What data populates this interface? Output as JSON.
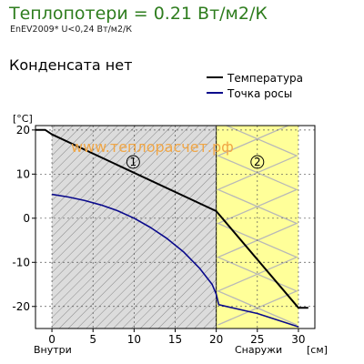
{
  "header": {
    "title": "Теплопотери = 0.21 Вт/м2/К",
    "subtitle": "EnEV2009* U<0,24 Вт/м2/К"
  },
  "status_text": "Конденсата нет",
  "watermark": "www.теплорасчет.рф",
  "colors": {
    "title_green": "#2e7d1e",
    "temperature_line": "#000000",
    "dew_point_line": "#0a0a8c",
    "masonry_fill": "#dcdcdc",
    "insulation_fill": "#ffff99",
    "insulation_zigzag": "#b8b8b8",
    "watermark_orange": "#f0a646"
  },
  "chart_data": {
    "type": "line",
    "ylabel": "[°C]",
    "xlabel_left": "Внутри",
    "xlabel_right": "Снаружи",
    "x_unit": "[см]",
    "xlim": [
      -2,
      32
    ],
    "ylim": [
      -25,
      21
    ],
    "xticks": [
      0,
      5,
      10,
      15,
      20,
      25,
      30
    ],
    "yticks": [
      20,
      10,
      0,
      -10,
      -20
    ],
    "grid": "dashed",
    "legend_position": "top-right",
    "layers": [
      {
        "label": "1",
        "x_start": 0,
        "x_end": 20,
        "material": "masonry"
      },
      {
        "label": "2",
        "x_start": 20,
        "x_end": 30,
        "material": "insulation"
      }
    ],
    "series": [
      {
        "name": "Температура",
        "color": "#000000",
        "x": [
          -2,
          -0.8,
          0,
          20,
          30,
          31.2
        ],
        "y": [
          20,
          20,
          19,
          1.6,
          -20.3,
          -20.3
        ]
      },
      {
        "name": "Точка росы",
        "color": "#0a0a8c",
        "x": [
          0,
          2,
          4,
          6,
          8,
          10,
          12,
          14,
          16,
          18,
          19.5,
          20,
          20.3,
          25,
          30
        ],
        "y": [
          5.4,
          4.8,
          4.0,
          3.0,
          1.7,
          0.0,
          -2.1,
          -4.6,
          -7.6,
          -11.4,
          -15.0,
          -17.2,
          -19.6,
          -21.6,
          -24.6
        ]
      }
    ]
  }
}
